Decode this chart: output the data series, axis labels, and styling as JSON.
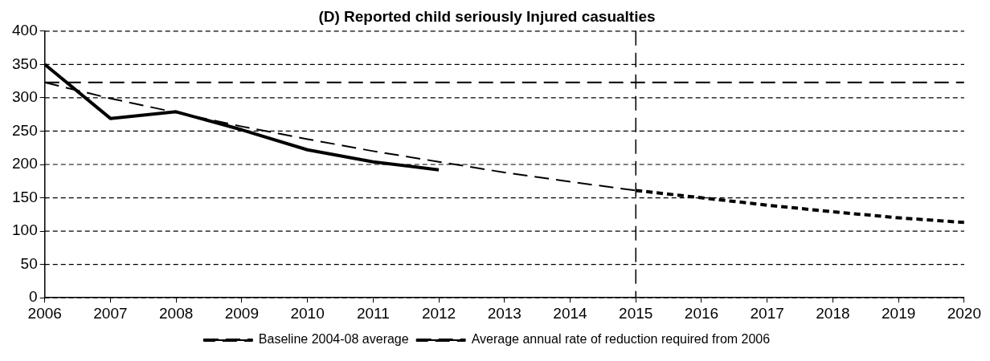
{
  "chart_data": {
    "type": "line",
    "title": "(D) Reported child seriously Injured casualties",
    "xlim": [
      2006,
      2020
    ],
    "xticks": [
      2006,
      2007,
      2008,
      2009,
      2010,
      2011,
      2012,
      2013,
      2014,
      2015,
      2016,
      2017,
      2018,
      2019,
      2020
    ],
    "ylim": [
      0,
      400
    ],
    "yticks": [
      0,
      50,
      100,
      150,
      200,
      250,
      300,
      350,
      400
    ],
    "grid": "y",
    "legend": "bottom",
    "marker": "none",
    "series": [
      {
        "color": "#000000",
        "line_style": "solid",
        "x": [
          2006,
          2007,
          2008,
          2009,
          2010,
          2011,
          2012
        ],
        "values": [
          350,
          269,
          279,
          252,
          222,
          204,
          192
        ]
      },
      {
        "name": "Baseline 2004-08 average",
        "color": "#000000",
        "line_style": "dashed",
        "x": [
          2006,
          2020
        ],
        "values": [
          323,
          323
        ]
      },
      {
        "name": "Average annual rate of reduction required from 2006",
        "color": "#000000",
        "line_style": "dashed",
        "x": [
          2006,
          2007,
          2008,
          2009,
          2010,
          2011,
          2012,
          2013,
          2014,
          2015
        ],
        "values": [
          323,
          299,
          278,
          257,
          238,
          220,
          204,
          188,
          174,
          161
        ]
      },
      {
        "color": "#000000",
        "line_style": "dotted",
        "x": [
          2015,
          2016,
          2017,
          2018,
          2019,
          2020
        ],
        "values": [
          161,
          150,
          139,
          129,
          120,
          113
        ]
      }
    ],
    "ref_lines": [
      {
        "axis": "x",
        "value": 2015,
        "color": "#000000",
        "line_style": "dashed"
      }
    ]
  }
}
